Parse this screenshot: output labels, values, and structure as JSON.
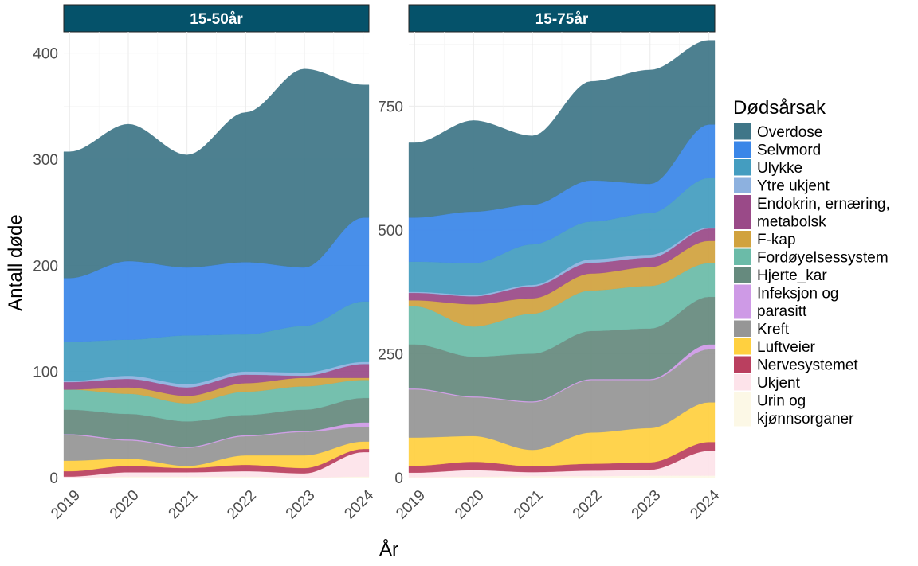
{
  "chart_data": {
    "type": "area",
    "stacked": true,
    "xlabel": "År",
    "ylabel": "Antall døde",
    "x": [
      2019,
      2020,
      2021,
      2022,
      2023,
      2024
    ],
    "legend": {
      "title": "Dødsårsak",
      "position": "right",
      "entries": [
        {
          "name": "Overdose",
          "lines": [
            "Overdose"
          ],
          "color": "#3F7688"
        },
        {
          "name": "Selvmord",
          "lines": [
            "Selvmord"
          ],
          "color": "#3A86E8"
        },
        {
          "name": "Ulykke",
          "lines": [
            "Ulykke"
          ],
          "color": "#449DC0"
        },
        {
          "name": "Ytre ukjent",
          "lines": [
            "Ytre ukjent"
          ],
          "color": "#8DB1DF"
        },
        {
          "name": "Endokrin, ernæring, metabolsk",
          "lines": [
            "Endokrin, ernæring,",
            "metabolsk"
          ],
          "color": "#9A4A88"
        },
        {
          "name": "F-kap",
          "lines": [
            "F-kap"
          ],
          "color": "#D1A23E"
        },
        {
          "name": "Fordøyelsessystem",
          "lines": [
            "Fordøyelsessystem"
          ],
          "color": "#6BBBA8"
        },
        {
          "name": "Hjerte_kar",
          "lines": [
            "Hjerte_kar"
          ],
          "color": "#668A7E"
        },
        {
          "name": "Infeksjon og parasitt",
          "lines": [
            "Infeksjon og",
            "parasitt"
          ],
          "color": "#CE9AE6"
        },
        {
          "name": "Kreft",
          "lines": [
            "Kreft"
          ],
          "color": "#969696"
        },
        {
          "name": "Luftveier",
          "lines": [
            "Luftveier"
          ],
          "color": "#FFD03F"
        },
        {
          "name": "Nervesystemet",
          "lines": [
            "Nervesystemet"
          ],
          "color": "#BA3F5F"
        },
        {
          "name": "Ukjent",
          "lines": [
            "Ukjent"
          ],
          "color": "#FDE3EA"
        },
        {
          "name": "Urin og kjønnsorganer",
          "lines": [
            "Urin og",
            "kjønnsorganer"
          ],
          "color": "#FCF8E6"
        }
      ]
    },
    "panels": [
      {
        "title": "15-50år",
        "ylim": [
          0,
          420
        ],
        "yticks": [
          0,
          100,
          200,
          300,
          400
        ],
        "series": [
          {
            "name": "Urin og kjønnsorganer",
            "values": [
              0,
              1,
              1,
              1,
              0,
              1
            ]
          },
          {
            "name": "Ukjent",
            "values": [
              1,
              4,
              4,
              5,
              4,
              23
            ]
          },
          {
            "name": "Nervesystemet",
            "values": [
              5,
              6,
              4,
              6,
              5,
              3
            ]
          },
          {
            "name": "Luftveier",
            "values": [
              10,
              7,
              2,
              9,
              12,
              7
            ]
          },
          {
            "name": "Kreft",
            "values": [
              24,
              17,
              17,
              18,
              22,
              14
            ]
          },
          {
            "name": "Infeksjon og parasitt",
            "values": [
              1,
              1,
              1,
              1,
              1,
              4
            ]
          },
          {
            "name": "Hjerte_kar",
            "values": [
              23,
              24,
              24,
              19,
              20,
              23
            ]
          },
          {
            "name": "Fordøyelsessystem",
            "values": [
              19,
              19,
              17,
              22,
              22,
              17
            ]
          },
          {
            "name": "F-kap",
            "values": [
              0,
              6,
              7,
              8,
              8,
              2
            ]
          },
          {
            "name": "Endokrin, ernæring, metabolsk",
            "values": [
              7,
              8,
              8,
              8,
              2,
              13
            ]
          },
          {
            "name": "Ytre ukjent",
            "values": [
              1,
              3,
              3,
              3,
              3,
              2
            ]
          },
          {
            "name": "Ulykke",
            "values": [
              37,
              34,
              46,
              35,
              44,
              57
            ]
          },
          {
            "name": "Selvmord",
            "values": [
              60,
              74,
              64,
              68,
              55,
              79
            ]
          },
          {
            "name": "Overdose",
            "values": [
              119,
              129,
              106,
              141,
              187,
              125
            ]
          }
        ]
      },
      {
        "title": "15-75år",
        "ylim": [
          0,
          900
        ],
        "yticks": [
          0,
          250,
          500,
          750
        ],
        "series": [
          {
            "name": "Urin og kjønnsorganer",
            "values": [
              1,
              2,
              3,
              3,
              4,
              4
            ]
          },
          {
            "name": "Ukjent",
            "values": [
              9,
              13,
              8,
              11,
              12,
              50
            ]
          },
          {
            "name": "Nervesystemet",
            "values": [
              14,
              17,
              12,
              14,
              15,
              18
            ]
          },
          {
            "name": "Luftveier",
            "values": [
              57,
              52,
              33,
              63,
              69,
              80
            ]
          },
          {
            "name": "Kreft",
            "values": [
              97,
              78,
              96,
              106,
              97,
              107
            ]
          },
          {
            "name": "Infeksjon og parasitt",
            "values": [
              2,
              2,
              2,
              2,
              2,
              10
            ]
          },
          {
            "name": "Hjerte_kar",
            "values": [
              89,
              80,
              96,
              97,
              102,
              96
            ]
          },
          {
            "name": "Fordøyelsessystem",
            "values": [
              77,
              61,
              81,
              82,
              86,
              68
            ]
          },
          {
            "name": "F-kap",
            "values": [
              12,
              45,
              31,
              34,
              38,
              45
            ]
          },
          {
            "name": "Endokrin, ernæring, metabolsk",
            "values": [
              15,
              16,
              24,
              22,
              19,
              25
            ]
          },
          {
            "name": "Ytre ukjent",
            "values": [
              2,
              3,
              3,
              7,
              6,
              2
            ]
          },
          {
            "name": "Ulykke",
            "values": [
              61,
              64,
              82,
              76,
              84,
              100
            ]
          },
          {
            "name": "Selvmord",
            "values": [
              89,
              104,
              80,
              83,
              59,
              108
            ]
          },
          {
            "name": "Overdose",
            "values": [
              151,
              184,
              139,
              200,
              230,
              170
            ]
          }
        ]
      }
    ]
  }
}
